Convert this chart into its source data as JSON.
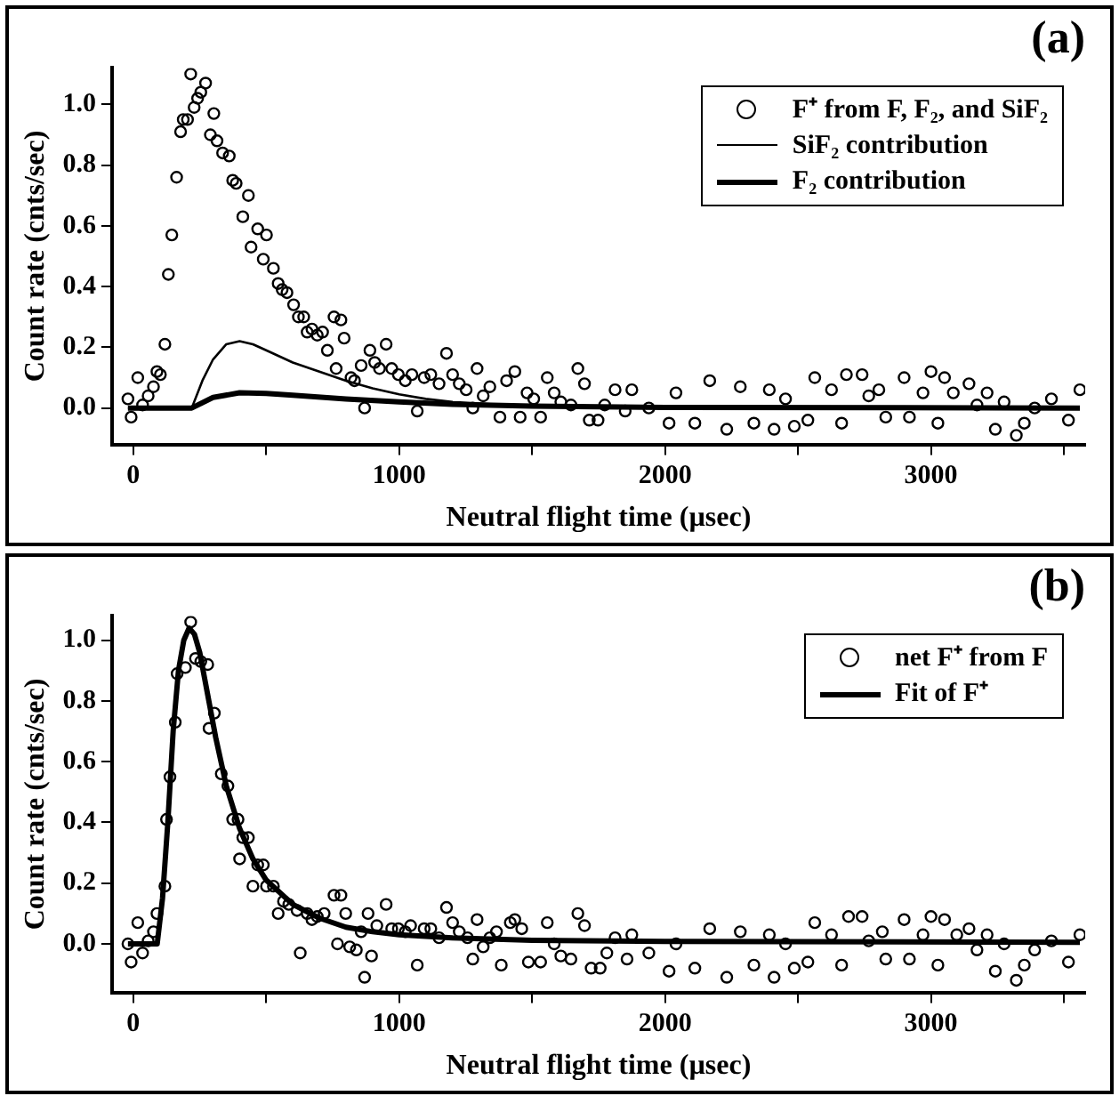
{
  "chart_data": [
    {
      "type": "scatter",
      "title": "(a)",
      "xlabel": "Neutral flight time (µsec)",
      "ylabel": "Count rate (cnts/sec)",
      "xlim": [
        -80,
        3580
      ],
      "ylim": [
        -0.12,
        1.12
      ],
      "xticks": [
        0,
        {
          "value": 500,
          "label": null
        },
        1000,
        {
          "value": 1500,
          "label": null
        },
        2000,
        {
          "value": 2500,
          "label": null
        },
        3000,
        {
          "value": 3500,
          "label": null
        }
      ],
      "yticks": [
        {
          "value": 0,
          "label": "0.0"
        },
        {
          "value": 0.2,
          "label": "0.2"
        },
        {
          "value": 0.4,
          "label": "0.4"
        },
        {
          "value": 0.6,
          "label": "0.6"
        },
        {
          "value": 0.8,
          "label": "0.8"
        },
        {
          "value": 1,
          "label": "1.0"
        }
      ],
      "legend": "top right",
      "grid": false,
      "series": [
        {
          "name": "F⁺ from F, F₂, and SiF₂",
          "marker": "circle",
          "color": "#000000",
          "x": [
            -20,
            -8,
            17,
            35,
            56,
            76,
            89,
            102,
            119,
            132,
            145,
            163,
            178,
            188,
            204,
            216,
            229,
            242,
            254,
            272,
            290,
            303,
            315,
            336,
            361,
            374,
            387,
            412,
            433,
            443,
            468,
            489,
            501,
            527,
            545,
            560,
            578,
            603,
            621,
            641,
            654,
            672,
            692,
            712,
            730,
            755,
            763,
            781,
            793,
            819,
            832,
            857,
            870,
            890,
            908,
            926,
            951,
            972,
            997,
            1023,
            1048,
            1068,
            1094,
            1119,
            1150,
            1178,
            1201,
            1226,
            1252,
            1277,
            1293,
            1316,
            1341,
            1379,
            1404,
            1435,
            1455,
            1481,
            1506,
            1532,
            1557,
            1583,
            1608,
            1646,
            1672,
            1697,
            1715,
            1748,
            1773,
            1812,
            1850,
            1875,
            1939,
            2015,
            2041,
            2112,
            2168,
            2232,
            2283,
            2334,
            2392,
            2410,
            2453,
            2486,
            2537,
            2563,
            2626,
            2664,
            2682,
            2741,
            2766,
            2804,
            2830,
            2899,
            2919,
            2970,
            3000,
            3026,
            3051,
            3084,
            3143,
            3173,
            3211,
            3242,
            3275,
            3321,
            3351,
            3390,
            3453,
            3517,
            3560
          ],
          "values": [
            0.03,
            -0.03,
            0.1,
            0.01,
            0.04,
            0.07,
            0.12,
            0.11,
            0.21,
            0.44,
            0.57,
            0.76,
            0.91,
            0.95,
            0.95,
            1.1,
            0.99,
            1.02,
            1.04,
            1.07,
            0.9,
            0.97,
            0.88,
            0.84,
            0.83,
            0.75,
            0.74,
            0.63,
            0.7,
            0.53,
            0.59,
            0.49,
            0.57,
            0.46,
            0.41,
            0.39,
            0.38,
            0.34,
            0.3,
            0.3,
            0.25,
            0.26,
            0.24,
            0.25,
            0.19,
            0.3,
            0.13,
            0.29,
            0.23,
            0.1,
            0.09,
            0.14,
            0,
            0.19,
            0.15,
            0.13,
            0.21,
            0.13,
            0.11,
            0.09,
            0.11,
            -0.01,
            0.1,
            0.11,
            0.08,
            0.18,
            0.11,
            0.08,
            0.06,
            0,
            0.13,
            0.04,
            0.07,
            -0.03,
            0.09,
            0.12,
            -0.03,
            0.05,
            0.03,
            -0.03,
            0.1,
            0.05,
            0.02,
            0.01,
            0.13,
            0.08,
            -0.04,
            -0.04,
            0.01,
            0.06,
            -0.01,
            0.06,
            0,
            -0.05,
            0.05,
            -0.05,
            0.09,
            -0.07,
            0.07,
            -0.05,
            0.06,
            -0.07,
            0.03,
            -0.06,
            -0.04,
            0.1,
            0.06,
            -0.05,
            0.11,
            0.11,
            0.04,
            0.06,
            -0.03,
            0.1,
            -0.03,
            0.05,
            0.12,
            -0.05,
            0.1,
            0.05,
            0.08,
            0.01,
            0.05,
            -0.07,
            0.02,
            -0.09,
            -0.05,
            0,
            0.03,
            -0.04,
            0.06
          ]
        },
        {
          "name": "SiF₂ contribution",
          "type": "line",
          "marker": "none",
          "color": "#000000",
          "x": [
            -20,
            220,
            260,
            300,
            350,
            400,
            450,
            500,
            600,
            700,
            800,
            900,
            1000,
            1100,
            1200,
            1400,
            1600,
            2000,
            3560
          ],
          "values": [
            0,
            0,
            0.09,
            0.16,
            0.21,
            0.22,
            0.21,
            0.19,
            0.15,
            0.12,
            0.09,
            0.065,
            0.045,
            0.03,
            0.02,
            0.01,
            0.005,
            0,
            0
          ]
        },
        {
          "name": "F₂ contribution",
          "type": "line",
          "marker": "none",
          "color": "#000000",
          "x": [
            -20,
            220,
            300,
            400,
            500,
            600,
            800,
            1000,
            1200,
            1500,
            2000,
            3560
          ],
          "values": [
            0,
            0,
            0.035,
            0.05,
            0.048,
            0.042,
            0.03,
            0.02,
            0.012,
            0.006,
            0.002,
            0
          ]
        }
      ]
    },
    {
      "type": "scatter",
      "title": "(b)",
      "xlabel": "Neutral flight time (µsec)",
      "ylabel": "Count rate (cnts/sec)",
      "xlim": [
        -80,
        3580
      ],
      "ylim": [
        -0.16,
        1.08
      ],
      "xticks": [
        0,
        {
          "value": 500,
          "label": null
        },
        1000,
        {
          "value": 1500,
          "label": null
        },
        2000,
        {
          "value": 2500,
          "label": null
        },
        3000,
        {
          "value": 3500,
          "label": null
        }
      ],
      "yticks": [
        {
          "value": 0,
          "label": "0.0"
        },
        {
          "value": 0.2,
          "label": "0.2"
        },
        {
          "value": 0.4,
          "label": "0.4"
        },
        {
          "value": 0.6,
          "label": "0.6"
        },
        {
          "value": 0.8,
          "label": "0.8"
        },
        {
          "value": 1,
          "label": "1.0"
        }
      ],
      "legend": "top right",
      "grid": false,
      "series": [
        {
          "name": "net F⁺ from F",
          "marker": "circle",
          "color": "#000000",
          "x": [
            -20,
            -8,
            17,
            35,
            56,
            76,
            89,
            119,
            125,
            138,
            158,
            165,
            196,
            216,
            234,
            254,
            280,
            285,
            305,
            331,
            356,
            374,
            394,
            400,
            412,
            433,
            450,
            468,
            489,
            501,
            527,
            545,
            565,
            585,
            616,
            628,
            654,
            672,
            692,
            718,
            755,
            768,
            781,
            799,
            814,
            839,
            857,
            870,
            883,
            896,
            916,
            951,
            972,
            997,
            1023,
            1043,
            1068,
            1094,
            1119,
            1150,
            1178,
            1201,
            1226,
            1257,
            1277,
            1293,
            1316,
            1341,
            1366,
            1384,
            1418,
            1435,
            1461,
            1486,
            1532,
            1557,
            1583,
            1608,
            1646,
            1672,
            1697,
            1722,
            1756,
            1781,
            1812,
            1857,
            1875,
            1939,
            2015,
            2041,
            2112,
            2168,
            2232,
            2283,
            2334,
            2392,
            2410,
            2453,
            2486,
            2537,
            2563,
            2626,
            2664,
            2690,
            2741,
            2766,
            2817,
            2830,
            2899,
            2919,
            2970,
            3000,
            3026,
            3051,
            3097,
            3143,
            3173,
            3211,
            3242,
            3275,
            3321,
            3351,
            3390,
            3453,
            3517,
            3560
          ],
          "values": [
            0,
            -0.06,
            0.07,
            -0.03,
            0.01,
            0.04,
            0.1,
            0.19,
            0.41,
            0.55,
            0.73,
            0.89,
            0.91,
            1.06,
            0.94,
            0.93,
            0.92,
            0.71,
            0.76,
            0.56,
            0.52,
            0.41,
            0.41,
            0.28,
            0.35,
            0.35,
            0.19,
            0.26,
            0.26,
            0.19,
            0.19,
            0.1,
            0.14,
            0.13,
            0.11,
            -0.03,
            0.1,
            0.08,
            0.09,
            0.1,
            0.16,
            0,
            0.16,
            0.1,
            -0.01,
            -0.02,
            0.04,
            -0.11,
            0.1,
            -0.04,
            0.06,
            0.13,
            0.05,
            0.05,
            0.04,
            0.06,
            -0.07,
            0.05,
            0.05,
            0.02,
            0.12,
            0.07,
            0.04,
            0.02,
            -0.05,
            0.08,
            -0.01,
            0.02,
            0.04,
            -0.07,
            0.07,
            0.08,
            0.05,
            -0.06,
            -0.06,
            0.07,
            0,
            -0.04,
            -0.05,
            0.1,
            0.06,
            -0.08,
            -0.08,
            -0.03,
            0.02,
            -0.05,
            0.03,
            -0.03,
            -0.09,
            0,
            -0.08,
            0.05,
            -0.11,
            0.04,
            -0.07,
            0.03,
            -0.11,
            0,
            -0.08,
            -0.06,
            0.07,
            0.03,
            -0.07,
            0.09,
            0.09,
            0.01,
            0.04,
            -0.05,
            0.08,
            -0.05,
            0.03,
            0.09,
            -0.07,
            0.08,
            0.03,
            0.05,
            -0.02,
            0.03,
            -0.09,
            0,
            -0.12,
            -0.07,
            -0.02,
            0.01,
            -0.06,
            0.03
          ]
        },
        {
          "name": "Fit of F⁺",
          "type": "line",
          "marker": "none",
          "color": "#000000",
          "x": [
            -20,
            90,
            110,
            130,
            150,
            170,
            190,
            210,
            230,
            250,
            280,
            310,
            350,
            400,
            450,
            500,
            600,
            700,
            800,
            900,
            1000,
            1200,
            1500,
            2000,
            3560
          ],
          "values": [
            0,
            0,
            0.15,
            0.4,
            0.7,
            0.9,
            1,
            1.04,
            1.02,
            0.96,
            0.82,
            0.68,
            0.52,
            0.38,
            0.28,
            0.21,
            0.13,
            0.085,
            0.055,
            0.04,
            0.03,
            0.02,
            0.012,
            0.008,
            0.005
          ]
        }
      ]
    }
  ]
}
